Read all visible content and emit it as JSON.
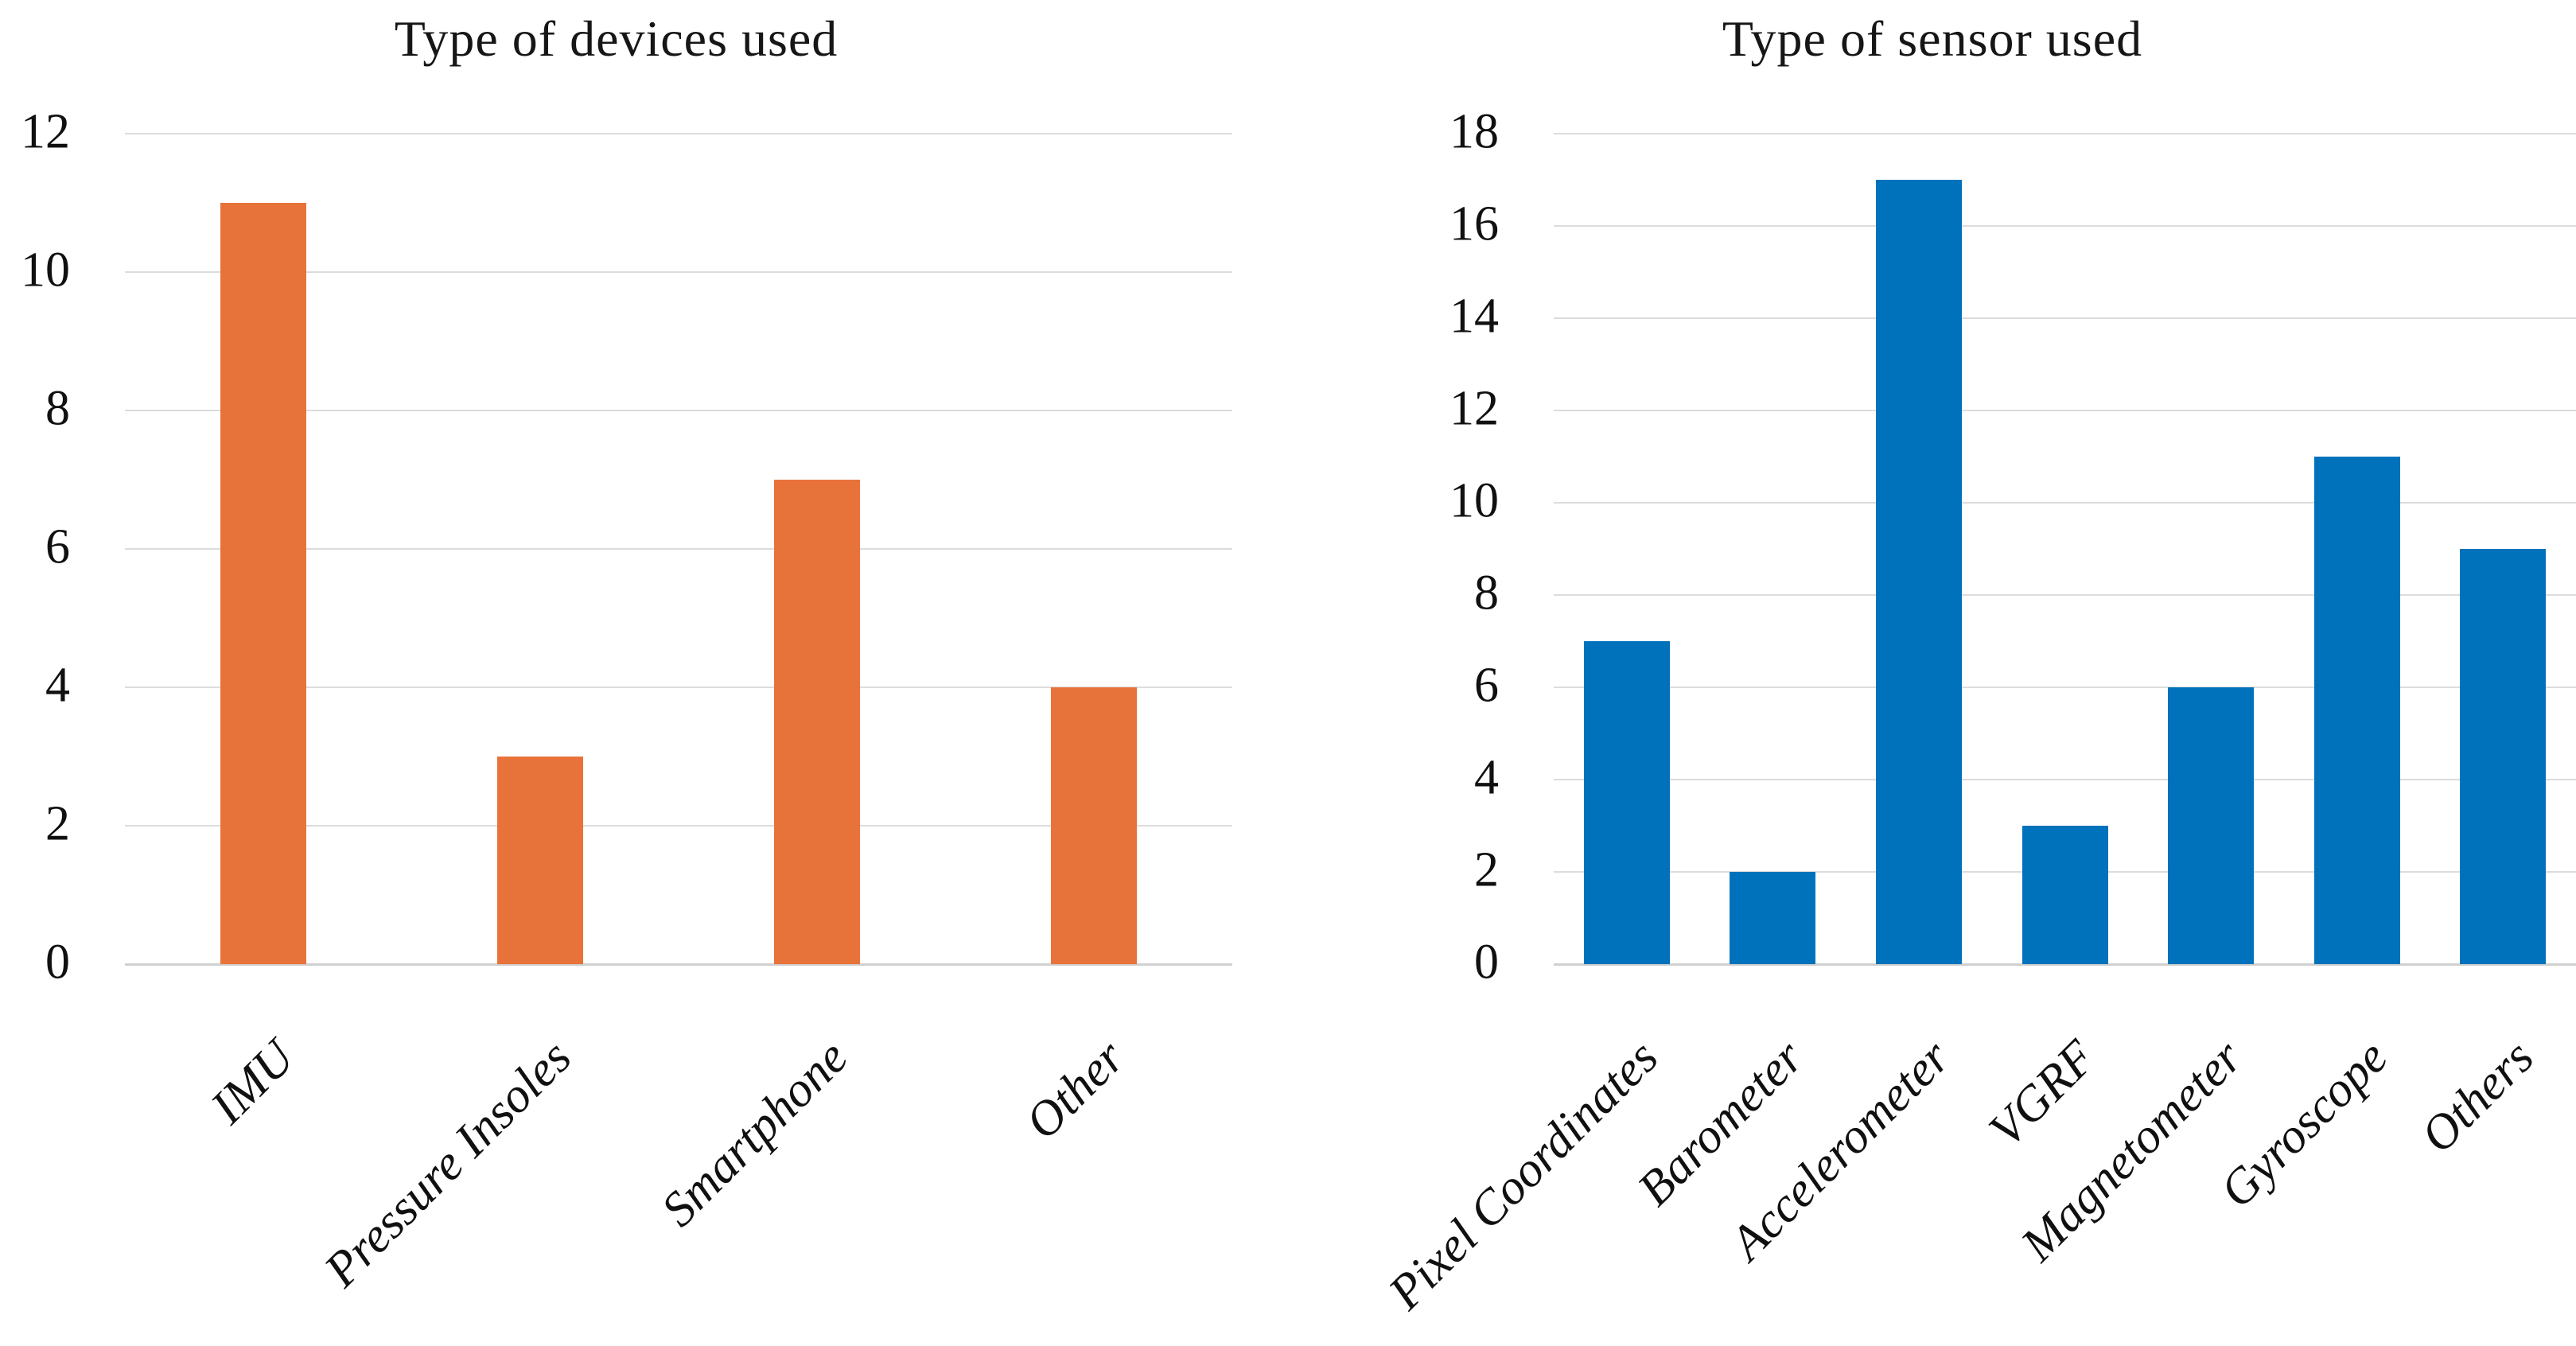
{
  "figure": {
    "background_color": "#ffffff",
    "gridline_color": "#dcdcdc",
    "axisline_color": "#d0d0d0",
    "text_color": "#101010"
  },
  "chart_data": [
    {
      "type": "bar",
      "title": "Type of devices used",
      "categories": [
        "IMU",
        "Pressure Insoles",
        "Smartphone",
        "Other"
      ],
      "values": [
        11,
        3,
        7,
        4
      ],
      "bar_color": "#e8733a",
      "xlabel": "",
      "ylabel": "",
      "ylim": [
        0,
        12
      ],
      "yticks": [
        0,
        2,
        4,
        6,
        8,
        10,
        12
      ],
      "grid": "horizontal",
      "legend": "none",
      "x_tick_rotation_deg": 45
    },
    {
      "type": "bar",
      "title": "Type of sensor used",
      "categories": [
        "Pixel Coordinates",
        "Barometer",
        "Accelerometer",
        "VGRF",
        "Magnetometer",
        "Gyroscope",
        "Others"
      ],
      "values": [
        7,
        2,
        17,
        3,
        6,
        11,
        9
      ],
      "bar_color": "#0072bc",
      "xlabel": "",
      "ylabel": "",
      "ylim": [
        0,
        18
      ],
      "yticks": [
        0,
        2,
        4,
        6,
        8,
        10,
        12,
        14,
        16,
        18
      ],
      "grid": "horizontal",
      "legend": "none",
      "x_tick_rotation_deg": 45
    }
  ]
}
